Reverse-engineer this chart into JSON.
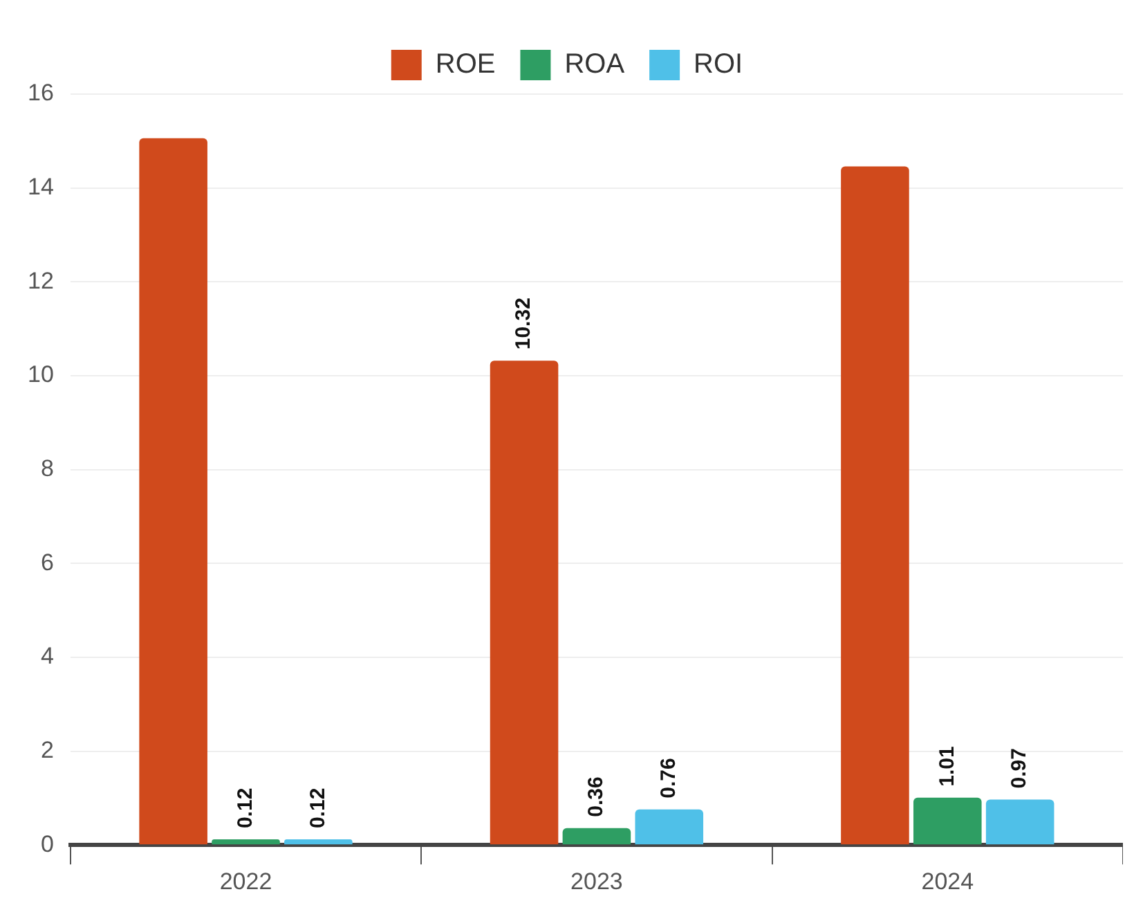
{
  "chart_data": {
    "type": "bar",
    "categories": [
      "2022",
      "2023",
      "2024"
    ],
    "series": [
      {
        "name": "ROE",
        "color": "#d04a1c",
        "values": [
          15.06,
          10.32,
          14.46
        ],
        "value_labels": [
          null,
          "10.32",
          null
        ]
      },
      {
        "name": "ROA",
        "color": "#2e9e63",
        "values": [
          0.12,
          0.36,
          1.01
        ],
        "value_labels": [
          "0.12",
          "0.36",
          "1.01"
        ]
      },
      {
        "name": "ROI",
        "color": "#4fc0e8",
        "values": [
          0.12,
          0.76,
          0.97
        ],
        "value_labels": [
          "0.12",
          "0.76",
          "0.97"
        ]
      }
    ],
    "ylim": [
      0,
      16
    ],
    "yticks": [
      0,
      2,
      4,
      6,
      8,
      10,
      12,
      14,
      16
    ],
    "grid": "y",
    "legend": "top"
  }
}
